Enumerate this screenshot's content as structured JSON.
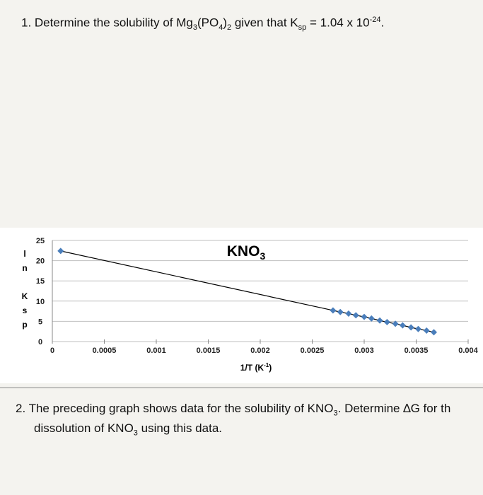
{
  "question1": {
    "parts": [
      "1.  Determine the solubility of Mg",
      "3",
      "(PO",
      "4",
      ")",
      "2",
      " given that K",
      "sp",
      " = 1.04 x 10",
      "-24",
      "."
    ]
  },
  "chart_data": {
    "type": "line",
    "title": [
      "KNO",
      "3"
    ],
    "x_label": [
      "1/T (K",
      "-1",
      ")"
    ],
    "y_label": "ln Ksp",
    "series": [
      {
        "color": "#4a7ebb",
        "x": [
          8e-05,
          0.0027,
          0.00277,
          0.00285,
          0.00292,
          0.003,
          0.00307,
          0.00315,
          0.00322,
          0.0033,
          0.00337,
          0.00345,
          0.00352,
          0.0036,
          0.00367
        ],
        "values": [
          22.4,
          7.7,
          7.3,
          6.9,
          6.5,
          6.1,
          5.7,
          5.2,
          4.8,
          4.4,
          4.0,
          3.5,
          3.1,
          2.7,
          2.3
        ]
      }
    ],
    "xlim": [
      0,
      0.004
    ],
    "xticks": [
      0,
      0.0005,
      0.001,
      0.0015,
      0.002,
      0.0025,
      0.003,
      0.0035,
      0.004
    ],
    "ylim": [
      0,
      25
    ],
    "yticks": [
      0,
      5,
      10,
      15,
      20,
      25
    ],
    "grid": true,
    "line_color": "#000000"
  },
  "question2": {
    "line1": [
      "2.  The preceding graph shows data for the solubility of KNO",
      "3",
      ".  Determine ∆G for th"
    ],
    "line2": [
      "dissolution of KNO",
      "3",
      " using this data."
    ]
  }
}
